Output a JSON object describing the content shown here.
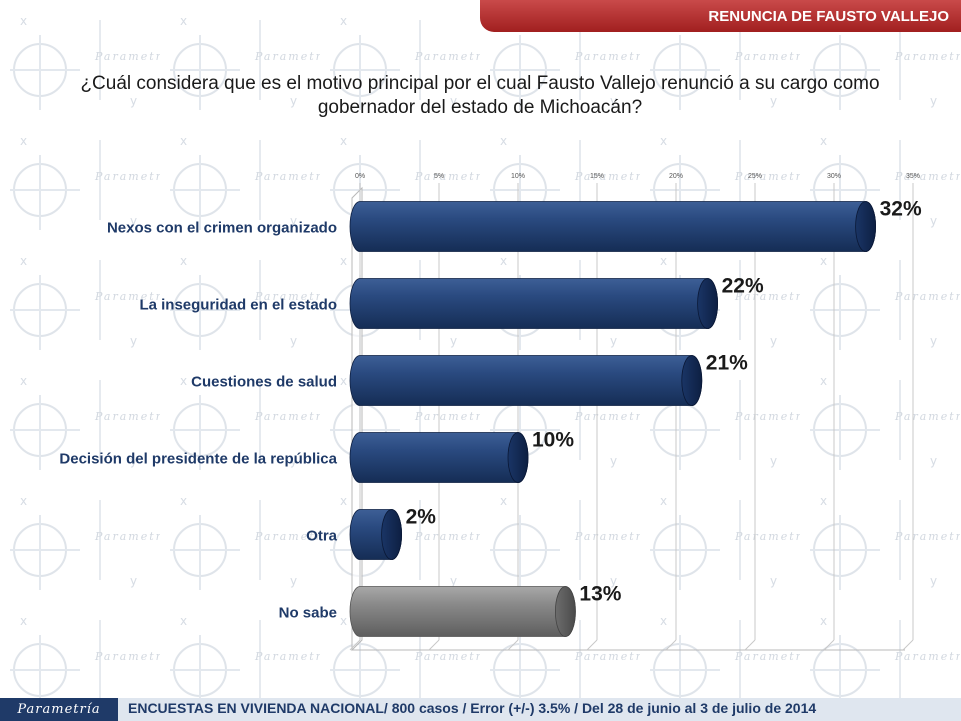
{
  "header": {
    "title": "RENUNCIA DE FAUSTO VALLEJO"
  },
  "question": "¿Cuál considera que es el motivo principal por el cual Fausto Vallejo renunció a su cargo como gobernador del estado de Michoacán?",
  "footer": {
    "brand": "Parametría",
    "note": "ENCUESTAS EN VIVIENDA NACIONAL/ 800 casos / Error (+/-) 3.5% / Del 28 de junio al 3 de julio de 2014"
  },
  "colors": {
    "bar": "#1f3a68",
    "bar_no_sabe": "#7a7a7a",
    "header": "#b33030",
    "label": "#1f3a68"
  },
  "chart_data": {
    "type": "bar",
    "orientation": "horizontal",
    "categories": [
      "Nexos con el crimen organizado",
      "La inseguridad en el estado",
      "Cuestiones de salud",
      "Decisión del presidente de la república",
      "Otra",
      "No sabe"
    ],
    "values": [
      32,
      22,
      21,
      10,
      2,
      13
    ],
    "value_labels": [
      "32%",
      "22%",
      "21%",
      "10%",
      "2%",
      "13%"
    ],
    "xlim": [
      0,
      35
    ],
    "xticks": [
      "0%",
      "5%",
      "10%",
      "15%",
      "20%",
      "25%",
      "30%",
      "35%"
    ],
    "grid": true
  }
}
